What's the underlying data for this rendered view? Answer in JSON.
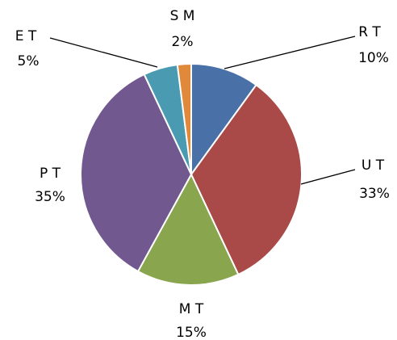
{
  "chart_data": {
    "type": "pie",
    "categories": [
      "R T",
      "U T",
      "M T",
      "P T",
      "E T",
      "S M"
    ],
    "values": [
      10,
      33,
      15,
      35,
      5,
      2
    ],
    "value_labels": [
      "10%",
      "33%",
      "15%",
      "35%",
      "5%",
      "2%"
    ],
    "colors": [
      "#4a70a8",
      "#a94a48",
      "#89a54e",
      "#71588f",
      "#4a9bb2",
      "#e0893b"
    ]
  }
}
